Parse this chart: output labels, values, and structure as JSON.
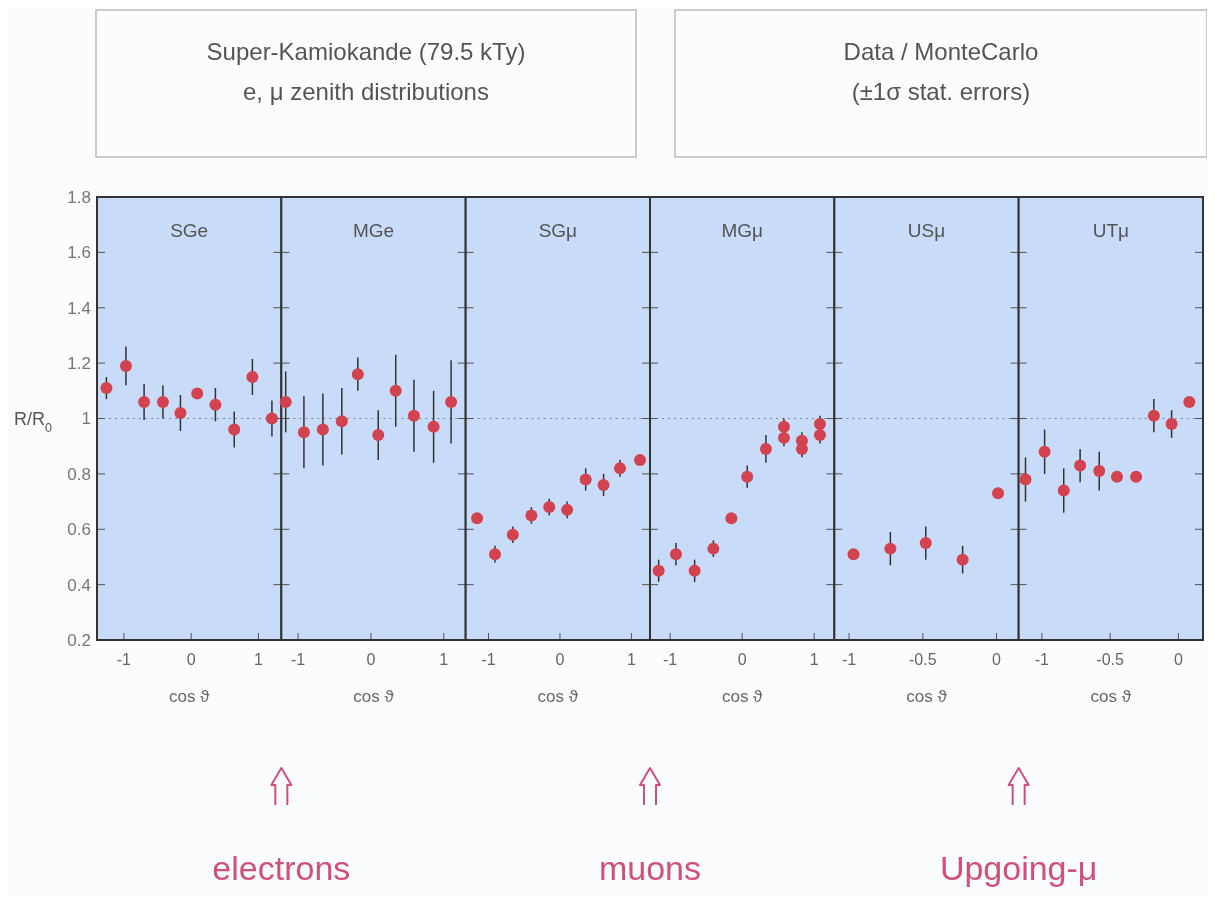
{
  "chart_data": [
    {
      "type": "other",
      "annotations": [
        "Super-Kamiokande (79.5 kTy)",
        "e, μ  zenith distributions",
        "Data / MonteCarlo",
        "(±1σ stat. errors)"
      ]
    },
    {
      "type": "scatter",
      "title": "SGe",
      "xlabel": "cos ϑ",
      "ylabel": "R/R$_{0}$",
      "color": "#d2434f",
      "marker": "circle",
      "x": [
        -1.26,
        -0.97,
        -0.7,
        -0.42,
        -0.16,
        0.09,
        0.36,
        0.64,
        0.91,
        1.2
      ],
      "values": [
        1.11,
        1.19,
        1.06,
        1.06,
        1.02,
        1.09,
        1.05,
        0.96,
        1.15,
        1.0
      ],
      "errors": [
        0.04,
        0.07,
        0.065,
        0.06,
        0.065,
        null,
        0.06,
        0.065,
        0.065,
        0.065
      ],
      "xlim": [
        -1.4,
        1.34
      ],
      "xticks": [
        -1,
        0,
        1
      ],
      "ylim": [
        0.2,
        1.8
      ],
      "yticks": [
        0.2,
        0.4,
        0.6,
        0.8,
        1,
        1.2,
        1.4,
        1.6,
        1.8
      ],
      "ref_lines": [
        {
          "axis": "y",
          "value": 1,
          "line_style": "dotted"
        }
      ],
      "annotations": [
        "electrons"
      ]
    },
    {
      "type": "scatter",
      "title": "MGe",
      "xlabel": "cos ϑ",
      "color": "#d2434f",
      "marker": "circle",
      "x": [
        -1.17,
        -0.92,
        -0.66,
        -0.4,
        -0.18,
        0.1,
        0.34,
        0.59,
        0.86,
        1.1
      ],
      "values": [
        1.06,
        0.95,
        0.96,
        0.99,
        1.16,
        0.94,
        1.1,
        1.01,
        0.97,
        1.06
      ],
      "errors": [
        0.11,
        0.13,
        0.13,
        0.12,
        0.06,
        0.09,
        0.13,
        0.13,
        0.13,
        0.15
      ],
      "xlim": [
        -1.23,
        1.3
      ],
      "xticks": [
        -1,
        0,
        1
      ],
      "ylim": [
        0.2,
        1.8
      ],
      "yticks": [
        0.2,
        0.4,
        0.6,
        0.8,
        1,
        1.2,
        1.4,
        1.6,
        1.8
      ],
      "tick_labels": "x",
      "ref_lines": [
        {
          "axis": "y",
          "value": 1,
          "line_style": "dotted"
        }
      ]
    },
    {
      "type": "scatter",
      "title": "SGμ",
      "xlabel": "cos ϑ",
      "color": "#d2434f",
      "marker": "circle",
      "x": [
        -1.16,
        -0.91,
        -0.66,
        -0.4,
        -0.15,
        0.1,
        0.36,
        0.61,
        0.84,
        1.12
      ],
      "values": [
        0.64,
        0.51,
        0.58,
        0.65,
        0.68,
        0.67,
        0.78,
        0.76,
        0.82,
        0.85
      ],
      "errors": [
        null,
        0.03,
        0.03,
        0.03,
        0.03,
        0.03,
        0.04,
        0.04,
        0.03,
        null
      ],
      "xlim": [
        -1.32,
        1.26
      ],
      "xticks": [
        -1,
        0,
        1
      ],
      "ylim": [
        0.2,
        1.8
      ],
      "yticks": [
        0.2,
        0.4,
        0.6,
        0.8,
        1,
        1.2,
        1.4,
        1.6,
        1.8
      ],
      "tick_labels": "x",
      "ref_lines": [
        {
          "axis": "y",
          "value": 1,
          "line_style": "dotted"
        }
      ],
      "annotations": [
        "muons"
      ]
    },
    {
      "type": "scatter",
      "title": "MGμ",
      "xlabel": "cos ϑ",
      "color": "#d2434f",
      "marker": "circle",
      "x": [
        -1.16,
        -0.92,
        -0.66,
        -0.4,
        -0.15,
        0.07,
        0.33,
        0.58,
        0.58,
        0.83,
        0.83,
        1.08,
        1.08
      ],
      "values": [
        0.45,
        0.51,
        0.45,
        0.53,
        0.64,
        0.79,
        0.89,
        0.97,
        0.93,
        0.92,
        0.89,
        0.98,
        0.94
      ],
      "errors": [
        0.04,
        0.04,
        0.04,
        0.03,
        null,
        0.04,
        0.05,
        0.03,
        0.03,
        0.03,
        0.03,
        0.03,
        0.03
      ],
      "xlim": [
        -1.28,
        1.28
      ],
      "xticks": [
        -1,
        0,
        1
      ],
      "ylim": [
        0.2,
        1.8
      ],
      "yticks": [
        0.2,
        0.4,
        0.6,
        0.8,
        1,
        1.2,
        1.4,
        1.6,
        1.8
      ],
      "tick_labels": "x",
      "ref_lines": [
        {
          "axis": "y",
          "value": 1,
          "line_style": "dotted"
        }
      ]
    },
    {
      "type": "scatter",
      "title": "USμ",
      "xlabel": "cos ϑ",
      "color": "#d2434f",
      "marker": "circle",
      "x": [
        -0.97,
        -0.72,
        -0.48,
        -0.23,
        0.01
      ],
      "values": [
        0.51,
        0.53,
        0.55,
        0.49,
        0.73
      ],
      "errors": [
        null,
        0.06,
        0.06,
        0.05,
        null
      ],
      "xlim": [
        -1.1,
        0.15
      ],
      "xticks": [
        -1,
        -0.5,
        0
      ],
      "ylim": [
        0.2,
        1.8
      ],
      "yticks": [
        0.2,
        0.4,
        0.6,
        0.8,
        1,
        1.2,
        1.4,
        1.6,
        1.8
      ],
      "tick_labels": "x",
      "ref_lines": [
        {
          "axis": "y",
          "value": 1,
          "line_style": "dotted"
        }
      ],
      "annotations": [
        "Upgoing-μ"
      ]
    },
    {
      "type": "scatter",
      "title": "UTμ",
      "xlabel": "cos ϑ",
      "color": "#d2434f",
      "marker": "circle",
      "x": [
        -1.12,
        -0.98,
        -0.84,
        -0.72,
        -0.58,
        -0.45,
        -0.31,
        -0.18,
        -0.05,
        0.08
      ],
      "values": [
        0.78,
        0.88,
        0.74,
        0.83,
        0.81,
        0.79,
        0.79,
        1.01,
        0.98,
        1.06
      ],
      "errors": [
        0.08,
        0.08,
        0.08,
        0.06,
        0.07,
        null,
        null,
        0.06,
        0.05,
        null
      ],
      "xlim": [
        -1.17,
        0.18
      ],
      "xticks": [
        -1,
        -0.5,
        0
      ],
      "ylim": [
        0.2,
        1.8
      ],
      "yticks": [
        0.2,
        0.4,
        0.6,
        0.8,
        1,
        1.2,
        1.4,
        1.6,
        1.8
      ],
      "tick_labels": "x",
      "ref_lines": [
        {
          "axis": "y",
          "value": 1,
          "line_style": "dotted"
        }
      ]
    }
  ]
}
